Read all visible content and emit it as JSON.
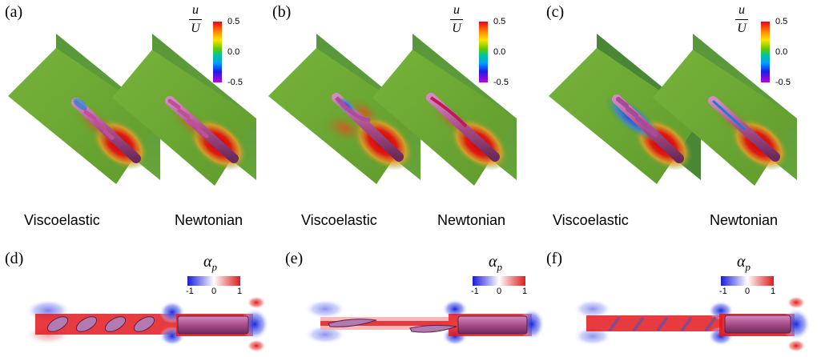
{
  "top_row": {
    "panels": [
      {
        "label": "(a)",
        "left_case": "Viscoelastic",
        "right_case": "Newtonian"
      },
      {
        "label": "(b)",
        "left_case": "Viscoelastic",
        "right_case": "Newtonian"
      },
      {
        "label": "(c)",
        "left_case": "Viscoelastic",
        "right_case": "Newtonian"
      }
    ],
    "colorbar": {
      "numerator": "u",
      "denominator": "U",
      "ticks": [
        "0.5",
        "0.0",
        "-0.5"
      ]
    }
  },
  "bottom_row": {
    "panels": [
      {
        "label": "(d)"
      },
      {
        "label": "(e)"
      },
      {
        "label": "(f)"
      }
    ],
    "colorbar": {
      "title": "α",
      "subscript": "p",
      "ticks": [
        "-1",
        "0",
        "1"
      ]
    }
  },
  "colors": {
    "field_green": "#5f9e2a",
    "wake_red": "#d9141b",
    "body_purple": "#b0507e",
    "pos_red": "#e3191e",
    "neg_blue": "#1f2fe0"
  }
}
